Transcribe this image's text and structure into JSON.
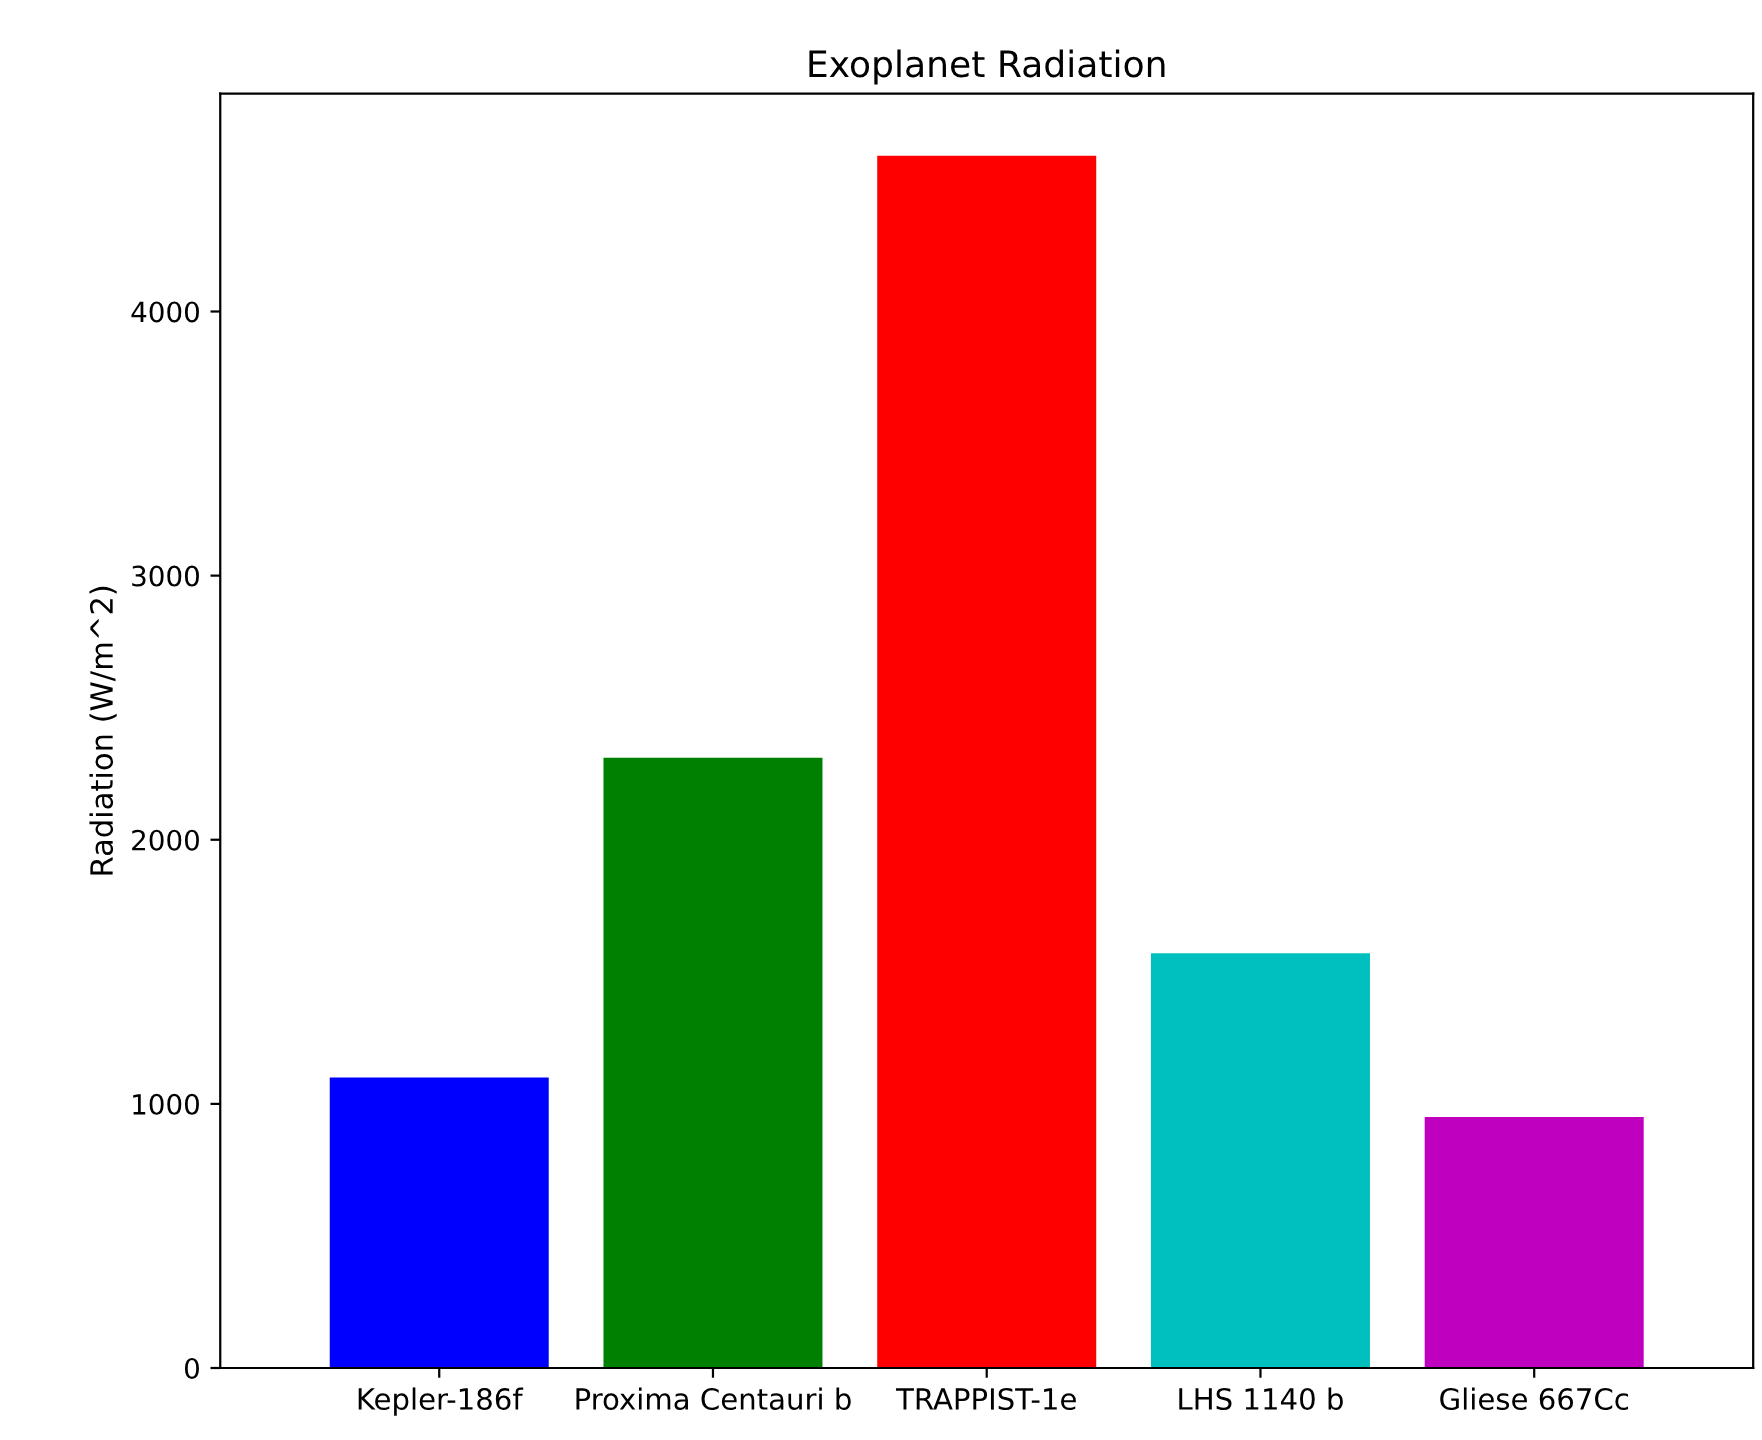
{
  "chart_data": {
    "type": "bar",
    "title": "Exoplanet Radiation",
    "ylabel": "Radiation (W/m^2)",
    "categories": [
      "Kepler-186f",
      "Proxima Centauri b",
      "TRAPPIST-1e",
      "LHS 1140 b",
      "Gliese 667Cc"
    ],
    "values": [
      1100,
      2310,
      4590,
      1570,
      950
    ],
    "colors": [
      "#0000ff",
      "#008000",
      "#ff0000",
      "#00bfbf",
      "#bf00bf"
    ],
    "ylim": [
      0,
      4825
    ],
    "yticks": [
      0,
      1000,
      2000,
      3000,
      4000
    ],
    "grid": false,
    "legend": false
  }
}
